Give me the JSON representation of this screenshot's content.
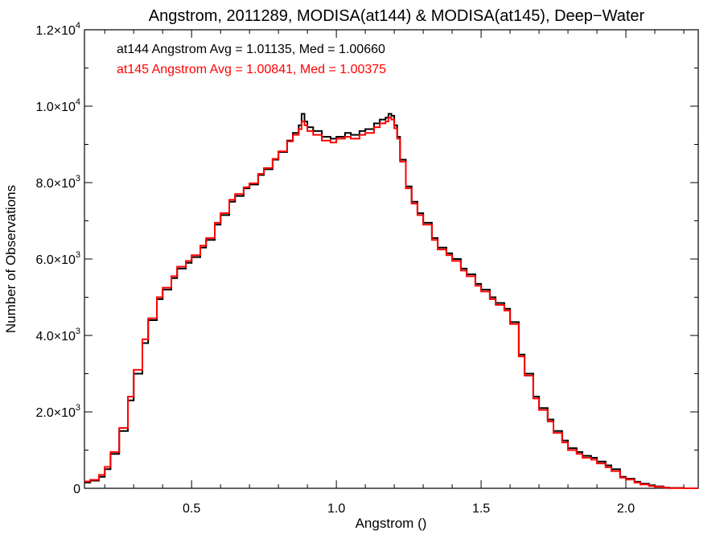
{
  "chart_data": {
    "type": "line",
    "title": "Angstrom, 2011289, MODISA(at144) & MODISA(at145), Deep−Water",
    "xlabel": "Angstrom ()",
    "ylabel": "Number of Observations",
    "xlim": [
      0.13,
      2.25
    ],
    "ylim": [
      0,
      12000
    ],
    "x_ticks": [
      0.5,
      1.0,
      1.5,
      2.0
    ],
    "x_tick_labels": [
      "0.5",
      "1.0",
      "1.5",
      "2.0"
    ],
    "y_ticks": [
      0,
      2000,
      4000,
      6000,
      8000,
      10000,
      12000
    ],
    "y_tick_labels": [
      {
        "mant": "0",
        "exp": ""
      },
      {
        "mant": "2.0×10",
        "exp": "3"
      },
      {
        "mant": "4.0×10",
        "exp": "3"
      },
      {
        "mant": "6.0×10",
        "exp": "3"
      },
      {
        "mant": "8.0×10",
        "exp": "3"
      },
      {
        "mant": "1.0×10",
        "exp": "4"
      },
      {
        "mant": "1.2×10",
        "exp": "4"
      }
    ],
    "grid": false,
    "annotations": [
      {
        "text": "at144 Angstrom Avg = 1.01135, Med = 1.00660",
        "color": "#000000"
      },
      {
        "text": "at145 Angstrom Avg = 1.00841, Med = 1.00375",
        "color": "#ff0000"
      }
    ],
    "series": [
      {
        "color": "#000000",
        "x": [
          0.13,
          0.15,
          0.18,
          0.2,
          0.22,
          0.25,
          0.28,
          0.3,
          0.33,
          0.35,
          0.38,
          0.4,
          0.43,
          0.45,
          0.48,
          0.5,
          0.53,
          0.55,
          0.58,
          0.6,
          0.63,
          0.65,
          0.68,
          0.7,
          0.73,
          0.75,
          0.78,
          0.8,
          0.83,
          0.85,
          0.87,
          0.88,
          0.89,
          0.9,
          0.92,
          0.95,
          0.98,
          1.0,
          1.03,
          1.05,
          1.08,
          1.1,
          1.13,
          1.15,
          1.17,
          1.18,
          1.19,
          1.2,
          1.21,
          1.22,
          1.24,
          1.26,
          1.28,
          1.3,
          1.33,
          1.35,
          1.38,
          1.4,
          1.43,
          1.45,
          1.48,
          1.5,
          1.53,
          1.55,
          1.58,
          1.6,
          1.63,
          1.65,
          1.68,
          1.7,
          1.73,
          1.75,
          1.78,
          1.8,
          1.83,
          1.85,
          1.88,
          1.9,
          1.93,
          1.95,
          1.98,
          2.0,
          2.03,
          2.05,
          2.08,
          2.1,
          2.13,
          2.15,
          2.2,
          2.25
        ],
        "y": [
          150,
          200,
          300,
          500,
          900,
          1500,
          2300,
          3000,
          3800,
          4400,
          4950,
          5200,
          5500,
          5750,
          5900,
          6050,
          6300,
          6500,
          6900,
          7150,
          7500,
          7650,
          7850,
          7950,
          8200,
          8350,
          8600,
          8800,
          9100,
          9300,
          9500,
          9800,
          9600,
          9450,
          9350,
          9200,
          9150,
          9200,
          9300,
          9250,
          9350,
          9400,
          9550,
          9650,
          9700,
          9800,
          9750,
          9500,
          9200,
          8600,
          7900,
          7500,
          7200,
          6950,
          6550,
          6300,
          6150,
          6000,
          5750,
          5600,
          5350,
          5200,
          5000,
          4850,
          4700,
          4350,
          3500,
          3000,
          2400,
          2100,
          1800,
          1500,
          1250,
          1050,
          950,
          850,
          800,
          700,
          600,
          500,
          300,
          250,
          170,
          120,
          80,
          50,
          20,
          10,
          0,
          0
        ]
      },
      {
        "color": "#ff0000",
        "x": [
          0.13,
          0.15,
          0.18,
          0.2,
          0.22,
          0.25,
          0.28,
          0.3,
          0.33,
          0.35,
          0.38,
          0.4,
          0.43,
          0.45,
          0.48,
          0.5,
          0.53,
          0.55,
          0.58,
          0.6,
          0.63,
          0.65,
          0.68,
          0.7,
          0.73,
          0.75,
          0.78,
          0.8,
          0.83,
          0.85,
          0.87,
          0.88,
          0.89,
          0.9,
          0.92,
          0.95,
          0.98,
          1.0,
          1.03,
          1.05,
          1.08,
          1.1,
          1.13,
          1.15,
          1.17,
          1.18,
          1.19,
          1.2,
          1.21,
          1.22,
          1.24,
          1.26,
          1.28,
          1.3,
          1.33,
          1.35,
          1.38,
          1.4,
          1.43,
          1.45,
          1.48,
          1.5,
          1.53,
          1.55,
          1.58,
          1.6,
          1.63,
          1.65,
          1.68,
          1.7,
          1.73,
          1.75,
          1.78,
          1.8,
          1.83,
          1.85,
          1.88,
          1.9,
          1.93,
          1.95,
          1.98,
          2.0,
          2.03,
          2.05,
          2.08,
          2.1,
          2.13,
          2.15,
          2.2,
          2.25
        ],
        "y": [
          180,
          220,
          350,
          560,
          950,
          1580,
          2400,
          3100,
          3900,
          4450,
          5000,
          5250,
          5550,
          5800,
          5950,
          6100,
          6350,
          6550,
          6950,
          7200,
          7550,
          7700,
          7880,
          7980,
          8230,
          8380,
          8620,
          8820,
          9080,
          9250,
          9400,
          9600,
          9500,
          9350,
          9250,
          9100,
          9050,
          9150,
          9200,
          9150,
          9250,
          9300,
          9450,
          9550,
          9600,
          9700,
          9650,
          9420,
          9150,
          8550,
          7850,
          7450,
          7150,
          6900,
          6500,
          6250,
          6100,
          5950,
          5700,
          5550,
          5300,
          5150,
          4950,
          4800,
          4650,
          4300,
          3450,
          2950,
          2350,
          2050,
          1750,
          1450,
          1200,
          1000,
          900,
          800,
          750,
          650,
          550,
          450,
          280,
          230,
          150,
          100,
          60,
          40,
          15,
          5,
          0,
          0
        ]
      }
    ]
  }
}
